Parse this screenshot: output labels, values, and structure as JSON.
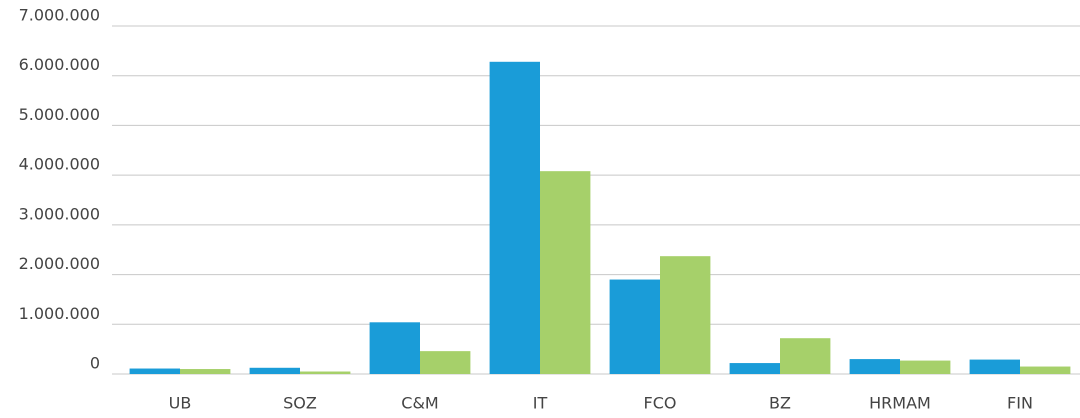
{
  "chart_data": {
    "type": "bar",
    "categories": [
      "UB",
      "SOZ",
      "C&M",
      "IT",
      "FCO",
      "BZ",
      "HRMAM",
      "FIN"
    ],
    "series": [
      {
        "color": "#1a9cd8",
        "values": [
          110000,
          125000,
          1040000,
          6280000,
          1900000,
          220000,
          300000,
          290000
        ]
      },
      {
        "color": "#a6d06a",
        "values": [
          100000,
          50000,
          460000,
          4080000,
          2370000,
          720000,
          270000,
          150000
        ]
      }
    ],
    "ylim": [
      0,
      7000000
    ],
    "yticks": [
      0,
      {
        "value": 1000000,
        "label": "1.000.000"
      },
      {
        "value": 2000000,
        "label": "2.000.000"
      },
      {
        "value": 3000000,
        "label": "3.000.000"
      },
      {
        "value": 4000000,
        "label": "4.000.000"
      },
      {
        "value": 5000000,
        "label": "5.000.000"
      },
      {
        "value": 6000000,
        "label": "6.000.000"
      },
      {
        "value": 7000000,
        "label": "7.000.000"
      }
    ],
    "grid": true
  }
}
